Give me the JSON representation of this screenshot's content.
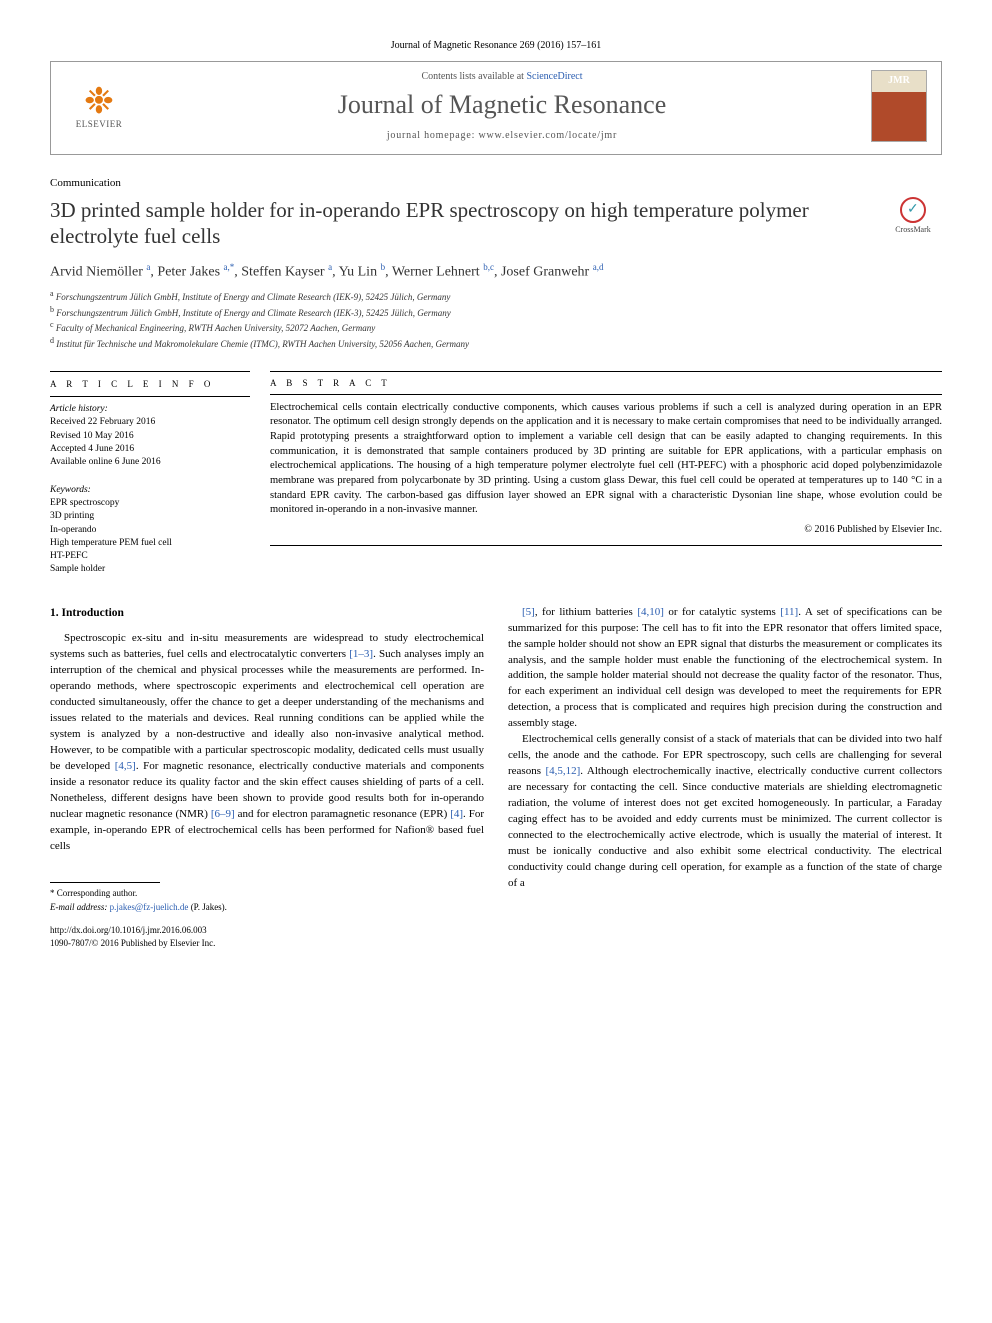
{
  "citation": {
    "journal": "Journal of Magnetic Resonance",
    "volume": "269 (2016) 157–161"
  },
  "header": {
    "elsevier": "ELSEVIER",
    "contents_prefix": "Contents lists available at ",
    "contents_link": "ScienceDirect",
    "journal_name": "Journal of Magnetic Resonance",
    "homepage_label": "journal homepage: www.elsevier.com/locate/jmr",
    "cover_label": "JMR"
  },
  "section_label": "Communication",
  "title": "3D printed sample holder for in-operando EPR spectroscopy on high temperature polymer electrolyte fuel cells",
  "crossmark": "CrossMark",
  "authors_html": "Arvid Niemöller <sup>a</sup>, Peter Jakes <sup>a,*</sup>, Steffen Kayser <sup>a</sup>, Yu Lin <sup>b</sup>, Werner Lehnert <sup>b,c</sup>, Josef Granwehr <sup>a,d</sup>",
  "affiliations": {
    "a": "Forschungszentrum Jülich GmbH, Institute of Energy and Climate Research (IEK-9), 52425 Jülich, Germany",
    "b": "Forschungszentrum Jülich GmbH, Institute of Energy and Climate Research (IEK-3), 52425 Jülich, Germany",
    "c": "Faculty of Mechanical Engineering, RWTH Aachen University, 52072 Aachen, Germany",
    "d": "Institut für Technische und Makromolekulare Chemie (ITMC), RWTH Aachen University, 52056 Aachen, Germany"
  },
  "article_info": {
    "heading": "A R T I C L E   I N F O",
    "history_label": "Article history:",
    "history": [
      "Received 22 February 2016",
      "Revised 10 May 2016",
      "Accepted 4 June 2016",
      "Available online 6 June 2016"
    ],
    "keywords_label": "Keywords:",
    "keywords": [
      "EPR spectroscopy",
      "3D printing",
      "In-operando",
      "High temperature PEM fuel cell",
      "HT-PEFC",
      "Sample holder"
    ]
  },
  "abstract": {
    "heading": "A B S T R A C T",
    "text": "Electrochemical cells contain electrically conductive components, which causes various problems if such a cell is analyzed during operation in an EPR resonator. The optimum cell design strongly depends on the application and it is necessary to make certain compromises that need to be individually arranged. Rapid prototyping presents a straightforward option to implement a variable cell design that can be easily adapted to changing requirements. In this communication, it is demonstrated that sample containers produced by 3D printing are suitable for EPR applications, with a particular emphasis on electrochemical applications. The housing of a high temperature polymer electrolyte fuel cell (HT-PEFC) with a phosphoric acid doped polybenzimidazole membrane was prepared from polycarbonate by 3D printing. Using a custom glass Dewar, this fuel cell could be operated at temperatures up to 140 °C in a standard EPR cavity. The carbon-based gas diffusion layer showed an EPR signal with a characteristic Dysonian line shape, whose evolution could be monitored in-operando in a non-invasive manner.",
    "copyright": "© 2016 Published by Elsevier Inc."
  },
  "intro": {
    "heading": "1. Introduction",
    "col1": "Spectroscopic ex-situ and in-situ measurements are widespread to study electrochemical systems such as batteries, fuel cells and electrocatalytic converters [1–3]. Such analyses imply an interruption of the chemical and physical processes while the measurements are performed. In-operando methods, where spectroscopic experiments and electrochemical cell operation are conducted simultaneously, offer the chance to get a deeper understanding of the mechanisms and issues related to the materials and devices. Real running conditions can be applied while the system is analyzed by a non-destructive and ideally also non-invasive analytical method. However, to be compatible with a particular spectroscopic modality, dedicated cells must usually be developed [4,5]. For magnetic resonance, electrically conductive materials and components inside a resonator reduce its quality factor and the skin effect causes shielding of parts of a cell. Nonetheless, different designs have been shown to provide good results both for in-operando nuclear magnetic resonance (NMR) [6–9] and for electron paramagnetic resonance (EPR) [4]. For example, in-operando EPR of electrochemical cells has been performed for Nafion® based fuel cells",
    "col2_p1": "[5], for lithium batteries [4,10] or for catalytic systems [11]. A set of specifications can be summarized for this purpose: The cell has to fit into the EPR resonator that offers limited space, the sample holder should not show an EPR signal that disturbs the measurement or complicates its analysis, and the sample holder must enable the functioning of the electrochemical system. In addition, the sample holder material should not decrease the quality factor of the resonator. Thus, for each experiment an individual cell design was developed to meet the requirements for EPR detection, a process that is complicated and requires high precision during the construction and assembly stage.",
    "col2_p2": "Electrochemical cells generally consist of a stack of materials that can be divided into two half cells, the anode and the cathode. For EPR spectroscopy, such cells are challenging for several reasons [4,5,12]. Although electrochemically inactive, electrically conductive current collectors are necessary for contacting the cell. Since conductive materials are shielding electromagnetic radiation, the volume of interest does not get excited homogeneously. In particular, a Faraday caging effect has to be avoided and eddy currents must be minimized. The current collector is connected to the electrochemically active electrode, which is usually the material of interest. It must be ionically conductive and also exhibit some electrical conductivity. The electrical conductivity could change during cell operation, for example as a function of the state of charge of a"
  },
  "footer": {
    "corresponding": "* Corresponding author.",
    "email_label": "E-mail address: ",
    "email": "p.jakes@fz-juelich.de",
    "email_suffix": " (P. Jakes).",
    "doi": "http://dx.doi.org/10.1016/j.jmr.2016.06.003",
    "issn": "1090-7807/© 2016 Published by Elsevier Inc."
  },
  "colors": {
    "link": "#2a5db0",
    "elsevier_orange": "#e47911",
    "text": "#000000"
  }
}
